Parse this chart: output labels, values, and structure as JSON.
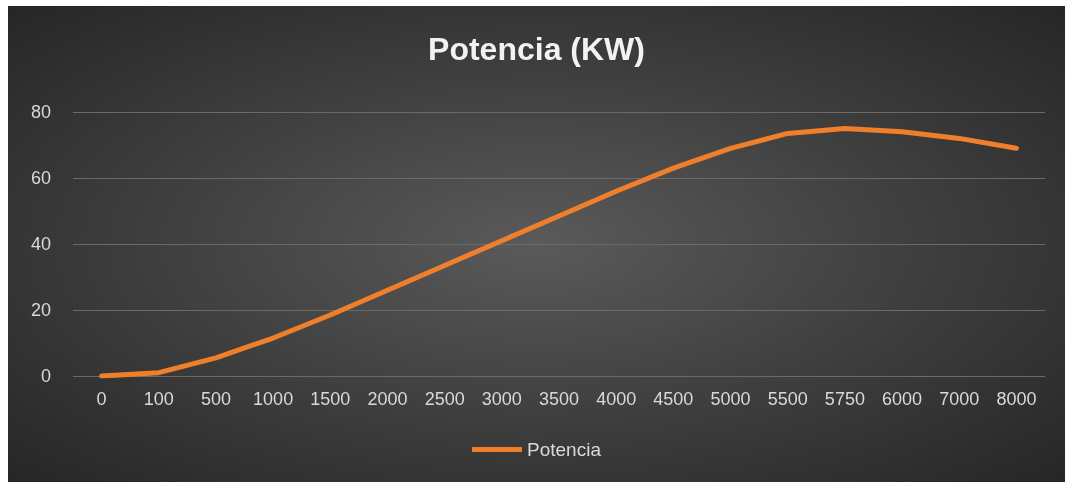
{
  "chart_data": {
    "type": "line",
    "title": "Potencia (KW)",
    "categories": [
      "0",
      "100",
      "500",
      "1000",
      "1500",
      "2000",
      "2500",
      "3000",
      "3500",
      "4000",
      "4500",
      "5000",
      "5500",
      "5750",
      "6000",
      "7000",
      "8000"
    ],
    "series": [
      {
        "name": "Potencia",
        "color": "#f07f2c",
        "values": [
          0,
          1,
          5.5,
          11.5,
          18.5,
          26,
          33.5,
          41,
          48.5,
          56,
          63,
          69,
          73.5,
          75,
          74,
          72,
          69
        ]
      }
    ],
    "ylim": [
      0,
      80
    ],
    "yticks": [
      0,
      20,
      40,
      60,
      80
    ],
    "grid": "y",
    "legend": "bottom",
    "marker": "none",
    "line_style": "solid"
  }
}
